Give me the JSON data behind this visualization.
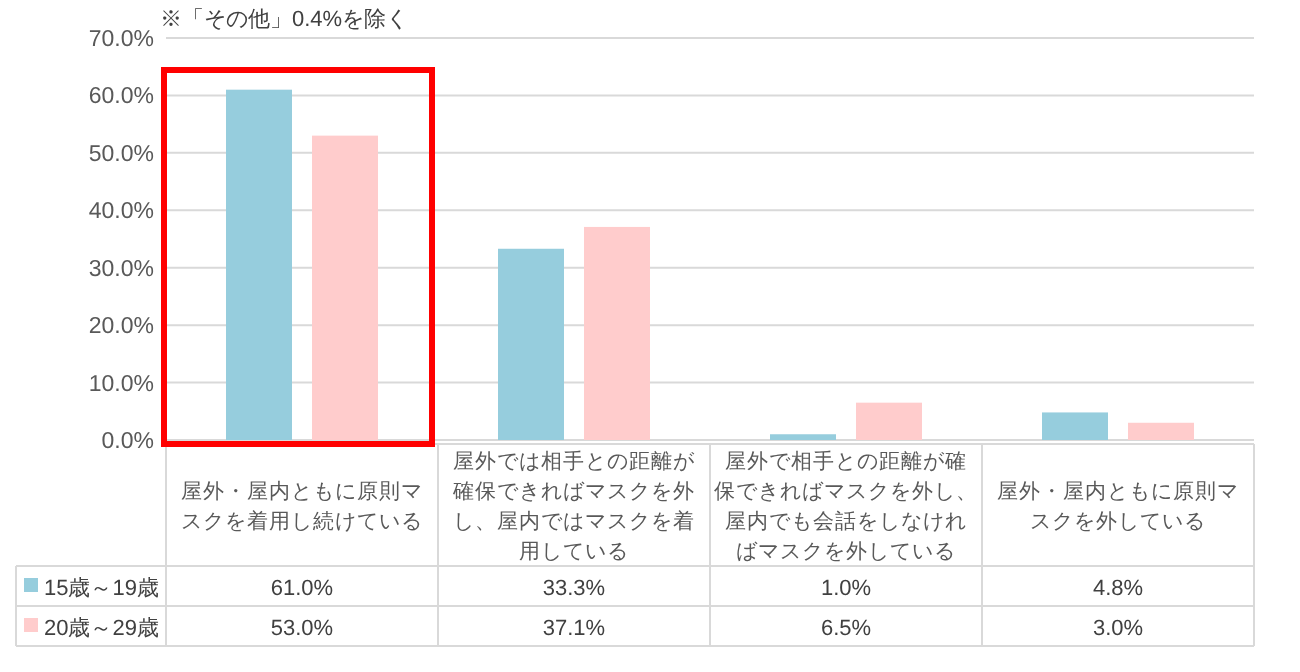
{
  "chart_data": {
    "type": "bar",
    "categories": [
      "屋外・屋内ともに原則マスクを着用し続けている",
      "屋外では相手との距離が確保できればマスクを外し、屋内ではマスクを着用している",
      "屋外で相手との距離が確保できればマスクを外し、屋内でも会話をしなければマスクを外している",
      "屋外・屋内ともに原則マスクを外している"
    ],
    "series": [
      {
        "name": "15歳～19歳",
        "color": "#96cddd",
        "values": [
          61.0,
          33.3,
          1.0,
          4.8
        ],
        "value_labels": [
          "61.0%",
          "33.3%",
          "1.0%",
          "4.8%"
        ]
      },
      {
        "name": "20歳～29歳",
        "color": "#ffcccc",
        "values": [
          53.0,
          37.1,
          6.5,
          3.0
        ],
        "value_labels": [
          "53.0%",
          "37.1%",
          "6.5%",
          "3.0%"
        ]
      }
    ],
    "ylim": [
      0,
      70
    ],
    "yticks": [
      {
        "value": 0,
        "label": "0.0%"
      },
      {
        "value": 10,
        "label": "10.0%"
      },
      {
        "value": 20,
        "label": "20.0%"
      },
      {
        "value": 30,
        "label": "30.0%"
      },
      {
        "value": 40,
        "label": "40.0%"
      },
      {
        "value": 50,
        "label": "50.0%"
      },
      {
        "value": 60,
        "label": "60.0%"
      },
      {
        "value": 70,
        "label": "70.0%"
      }
    ],
    "grid": "y",
    "legend": "bottom",
    "annotations": [
      "※「その他」0.4%を除く"
    ]
  }
}
